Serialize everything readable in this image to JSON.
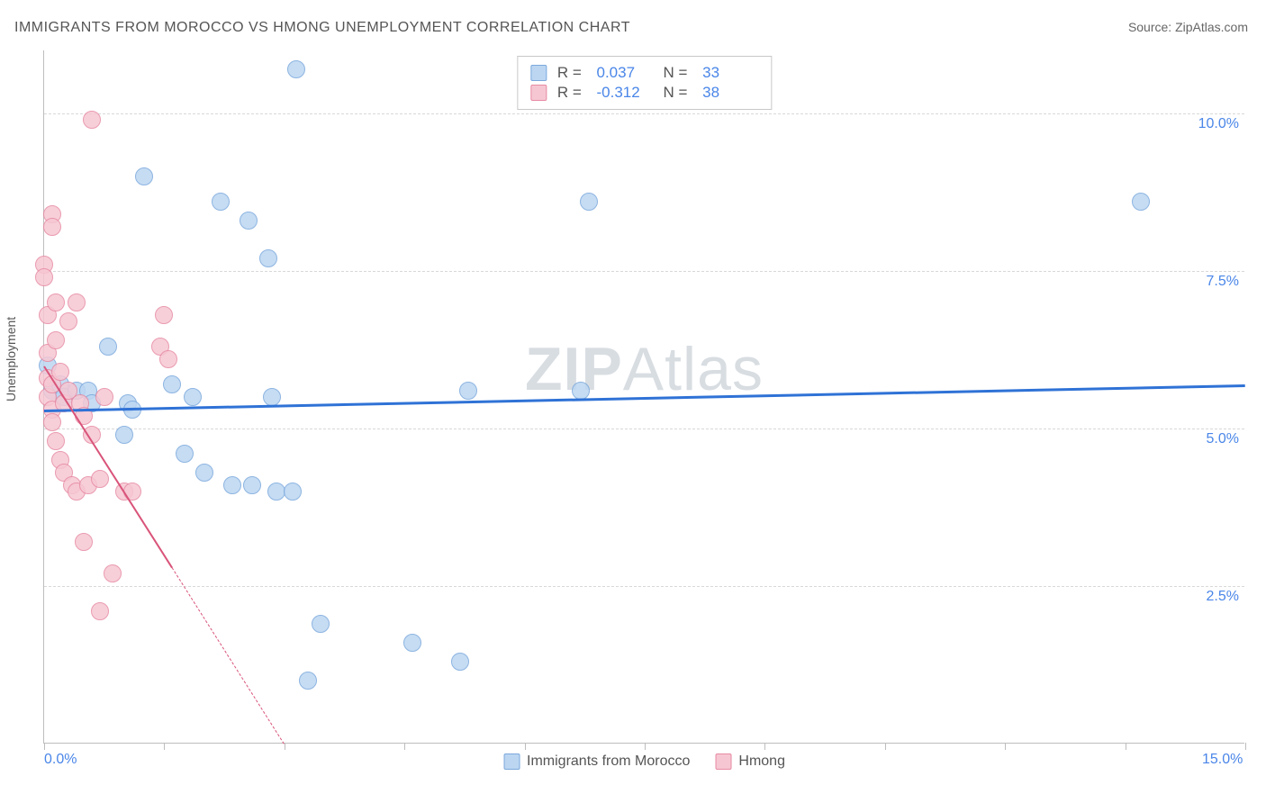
{
  "title": "IMMIGRANTS FROM MOROCCO VS HMONG UNEMPLOYMENT CORRELATION CHART",
  "source_label": "Source: ZipAtlas.com",
  "watermark": "ZIPAtlas",
  "ylabel": "Unemployment",
  "chart": {
    "type": "scatter",
    "xlim": [
      0,
      15
    ],
    "ylim": [
      0,
      11
    ],
    "xtick_positions": [
      0,
      1.5,
      3.0,
      4.5,
      6.0,
      7.5,
      9.0,
      10.5,
      12.0,
      13.5,
      15.0
    ],
    "xtick_labels": {
      "0": "0.0%",
      "15": "15.0%"
    },
    "ytick_positions": [
      2.5,
      5.0,
      7.5,
      10.0
    ],
    "ytick_labels": [
      "2.5%",
      "5.0%",
      "7.5%",
      "10.0%"
    ],
    "grid_color": "#d8d8d8",
    "axis_color": "#bdbdbd",
    "background_color": "#ffffff",
    "point_radius": 10,
    "series": [
      {
        "name": "Immigrants from Morocco",
        "fill": "#bcd6f2",
        "stroke": "#7aa8dc",
        "trend_color": "#2f72d6",
        "trend_width": 3,
        "trend_dash": "solid",
        "R": "0.037",
        "N": "33",
        "trend": {
          "x1": 0,
          "y1": 5.3,
          "x2": 15,
          "y2": 5.7
        },
        "points": [
          [
            0.05,
            6.0
          ],
          [
            0.1,
            5.6
          ],
          [
            0.2,
            5.7
          ],
          [
            0.25,
            5.5
          ],
          [
            0.4,
            5.6
          ],
          [
            0.55,
            5.6
          ],
          [
            0.6,
            5.4
          ],
          [
            0.8,
            6.3
          ],
          [
            1.0,
            4.9
          ],
          [
            1.05,
            5.4
          ],
          [
            1.1,
            5.3
          ],
          [
            1.25,
            9.0
          ],
          [
            1.6,
            5.7
          ],
          [
            1.75,
            4.6
          ],
          [
            1.85,
            5.5
          ],
          [
            2.0,
            4.3
          ],
          [
            2.2,
            8.6
          ],
          [
            2.35,
            4.1
          ],
          [
            2.55,
            8.3
          ],
          [
            2.6,
            4.1
          ],
          [
            2.8,
            7.7
          ],
          [
            2.85,
            5.5
          ],
          [
            2.9,
            4.0
          ],
          [
            3.1,
            4.0
          ],
          [
            3.15,
            10.7
          ],
          [
            3.3,
            1.0
          ],
          [
            3.45,
            1.9
          ],
          [
            4.6,
            1.6
          ],
          [
            5.2,
            1.3
          ],
          [
            5.3,
            5.6
          ],
          [
            6.7,
            5.6
          ],
          [
            6.8,
            8.6
          ],
          [
            13.7,
            8.6
          ]
        ]
      },
      {
        "name": "Hmong",
        "fill": "#f6c7d3",
        "stroke": "#e78aa3",
        "trend_color": "#d9547a",
        "trend_width": 2,
        "trend_dash": "solid_then_dashed",
        "R": "-0.312",
        "N": "38",
        "trend": {
          "x1": 0,
          "y1": 6.0,
          "x2": 3.0,
          "y2": 0,
          "solid_end_x": 1.6
        },
        "points": [
          [
            0.0,
            7.6
          ],
          [
            0.0,
            7.4
          ],
          [
            0.05,
            6.8
          ],
          [
            0.05,
            6.2
          ],
          [
            0.05,
            5.8
          ],
          [
            0.05,
            5.5
          ],
          [
            0.1,
            8.4
          ],
          [
            0.1,
            8.2
          ],
          [
            0.1,
            5.7
          ],
          [
            0.1,
            5.3
          ],
          [
            0.1,
            5.1
          ],
          [
            0.15,
            7.0
          ],
          [
            0.15,
            6.4
          ],
          [
            0.15,
            4.8
          ],
          [
            0.2,
            5.9
          ],
          [
            0.2,
            4.5
          ],
          [
            0.25,
            5.4
          ],
          [
            0.25,
            4.3
          ],
          [
            0.3,
            6.7
          ],
          [
            0.3,
            5.6
          ],
          [
            0.35,
            4.1
          ],
          [
            0.4,
            4.0
          ],
          [
            0.4,
            7.0
          ],
          [
            0.45,
            5.4
          ],
          [
            0.5,
            3.2
          ],
          [
            0.5,
            5.2
          ],
          [
            0.55,
            4.1
          ],
          [
            0.6,
            9.9
          ],
          [
            0.6,
            4.9
          ],
          [
            0.7,
            4.2
          ],
          [
            0.7,
            2.1
          ],
          [
            0.75,
            5.5
          ],
          [
            0.85,
            2.7
          ],
          [
            1.0,
            4.0
          ],
          [
            1.1,
            4.0
          ],
          [
            1.45,
            6.3
          ],
          [
            1.5,
            6.8
          ],
          [
            1.55,
            6.1
          ]
        ]
      }
    ]
  },
  "legend_bottom": [
    {
      "label": "Immigrants from Morocco",
      "fill": "#bcd6f2",
      "stroke": "#7aa8dc"
    },
    {
      "label": "Hmong",
      "fill": "#f6c7d3",
      "stroke": "#e78aa3"
    }
  ]
}
